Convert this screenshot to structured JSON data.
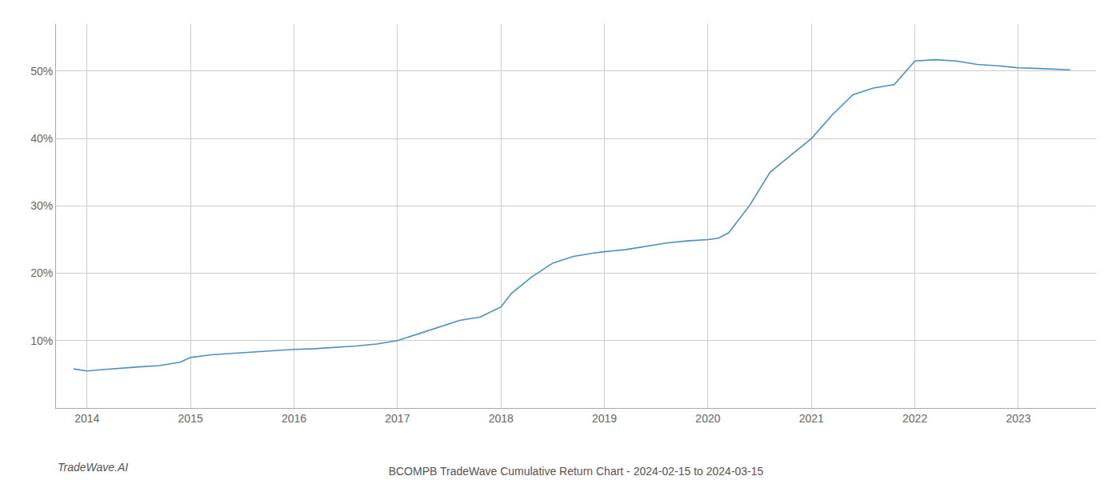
{
  "chart_data": {
    "type": "line",
    "title": "BCOMPB TradeWave Cumulative Return Chart - 2024-02-15 to 2024-03-15",
    "annotations": [
      "TradeWave.AI"
    ],
    "color": "#4a90c4",
    "x": [
      2013.87,
      2014.0,
      2014.15,
      2014.3,
      2014.5,
      2014.7,
      2014.9,
      2015.0,
      2015.2,
      2015.4,
      2015.6,
      2015.8,
      2016.0,
      2016.2,
      2016.4,
      2016.6,
      2016.8,
      2017.0,
      2017.2,
      2017.4,
      2017.6,
      2017.8,
      2018.0,
      2018.1,
      2018.3,
      2018.5,
      2018.7,
      2018.9,
      2019.0,
      2019.2,
      2019.4,
      2019.6,
      2019.8,
      2020.0,
      2020.1,
      2020.2,
      2020.4,
      2020.6,
      2020.8,
      2021.0,
      2021.2,
      2021.4,
      2021.6,
      2021.8,
      2022.0,
      2022.2,
      2022.4,
      2022.6,
      2022.8,
      2023.0,
      2023.2,
      2023.5
    ],
    "values": [
      5.8,
      5.5,
      5.7,
      5.9,
      6.1,
      6.3,
      6.8,
      7.5,
      7.9,
      8.1,
      8.3,
      8.5,
      8.7,
      8.8,
      9.0,
      9.2,
      9.5,
      10.0,
      11.0,
      12.0,
      13.0,
      13.5,
      15.0,
      17.0,
      19.5,
      21.5,
      22.5,
      23.0,
      23.2,
      23.5,
      24.0,
      24.5,
      24.8,
      25.0,
      25.2,
      26.0,
      30.0,
      35.0,
      37.5,
      40.0,
      43.5,
      46.5,
      47.5,
      48.0,
      51.5,
      51.7,
      51.5,
      51.0,
      50.8,
      50.5,
      50.4,
      50.2
    ],
    "xlim": [
      2013.7,
      2023.75
    ],
    "ylim": [
      0,
      57
    ],
    "xticks": [
      2014,
      2015,
      2016,
      2017,
      2018,
      2019,
      2020,
      2021,
      2022,
      2023
    ],
    "yticks": [
      {
        "value": 10,
        "label": "10%"
      },
      {
        "value": 20,
        "label": "20%"
      },
      {
        "value": 30,
        "label": "30%"
      },
      {
        "value": 40,
        "label": "40%"
      },
      {
        "value": 50,
        "label": "50%"
      }
    ],
    "grid": true
  }
}
